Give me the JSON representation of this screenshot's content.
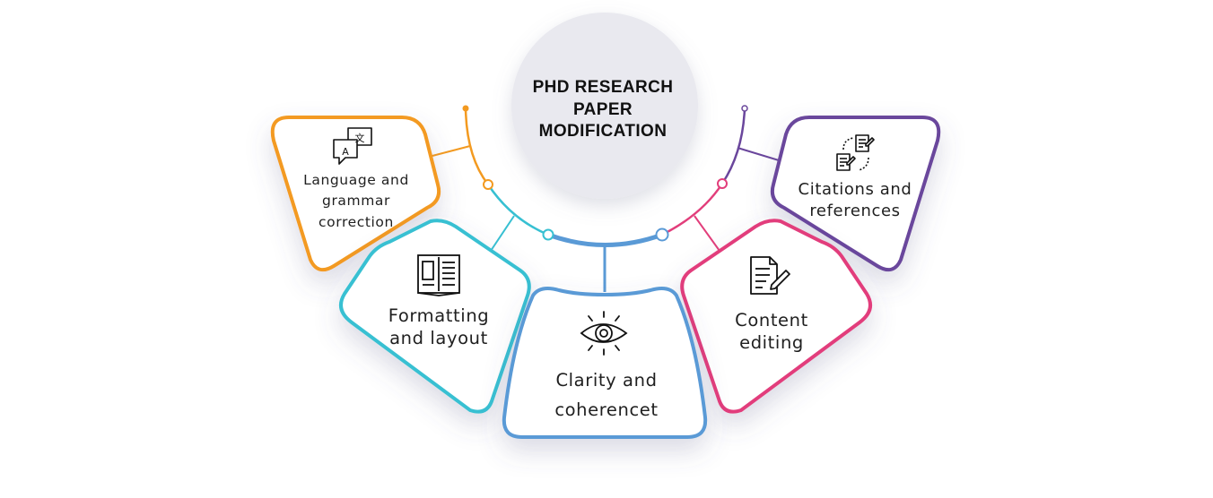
{
  "center": {
    "title_lines": [
      "PHD RESEARCH",
      "PAPER",
      "MODIFICATION"
    ]
  },
  "items": [
    {
      "id": "language",
      "lines": [
        "Language and",
        "grammar",
        "correction"
      ],
      "icon": "translate-icon",
      "color": "#f39a20"
    },
    {
      "id": "formatting",
      "lines": [
        "Formatting",
        "and layout"
      ],
      "icon": "open-book-icon",
      "color": "#37c0d2"
    },
    {
      "id": "clarity",
      "lines": [
        "Clarity and",
        "coherencet"
      ],
      "icon": "eye-icon",
      "color": "#5a9ad6"
    },
    {
      "id": "content",
      "lines": [
        "Content",
        "editing"
      ],
      "icon": "document-edit-icon",
      "color": "#e23e7b"
    },
    {
      "id": "citations",
      "lines": [
        "Citations and",
        "references"
      ],
      "icon": "citations-icon",
      "color": "#6a469c"
    }
  ]
}
